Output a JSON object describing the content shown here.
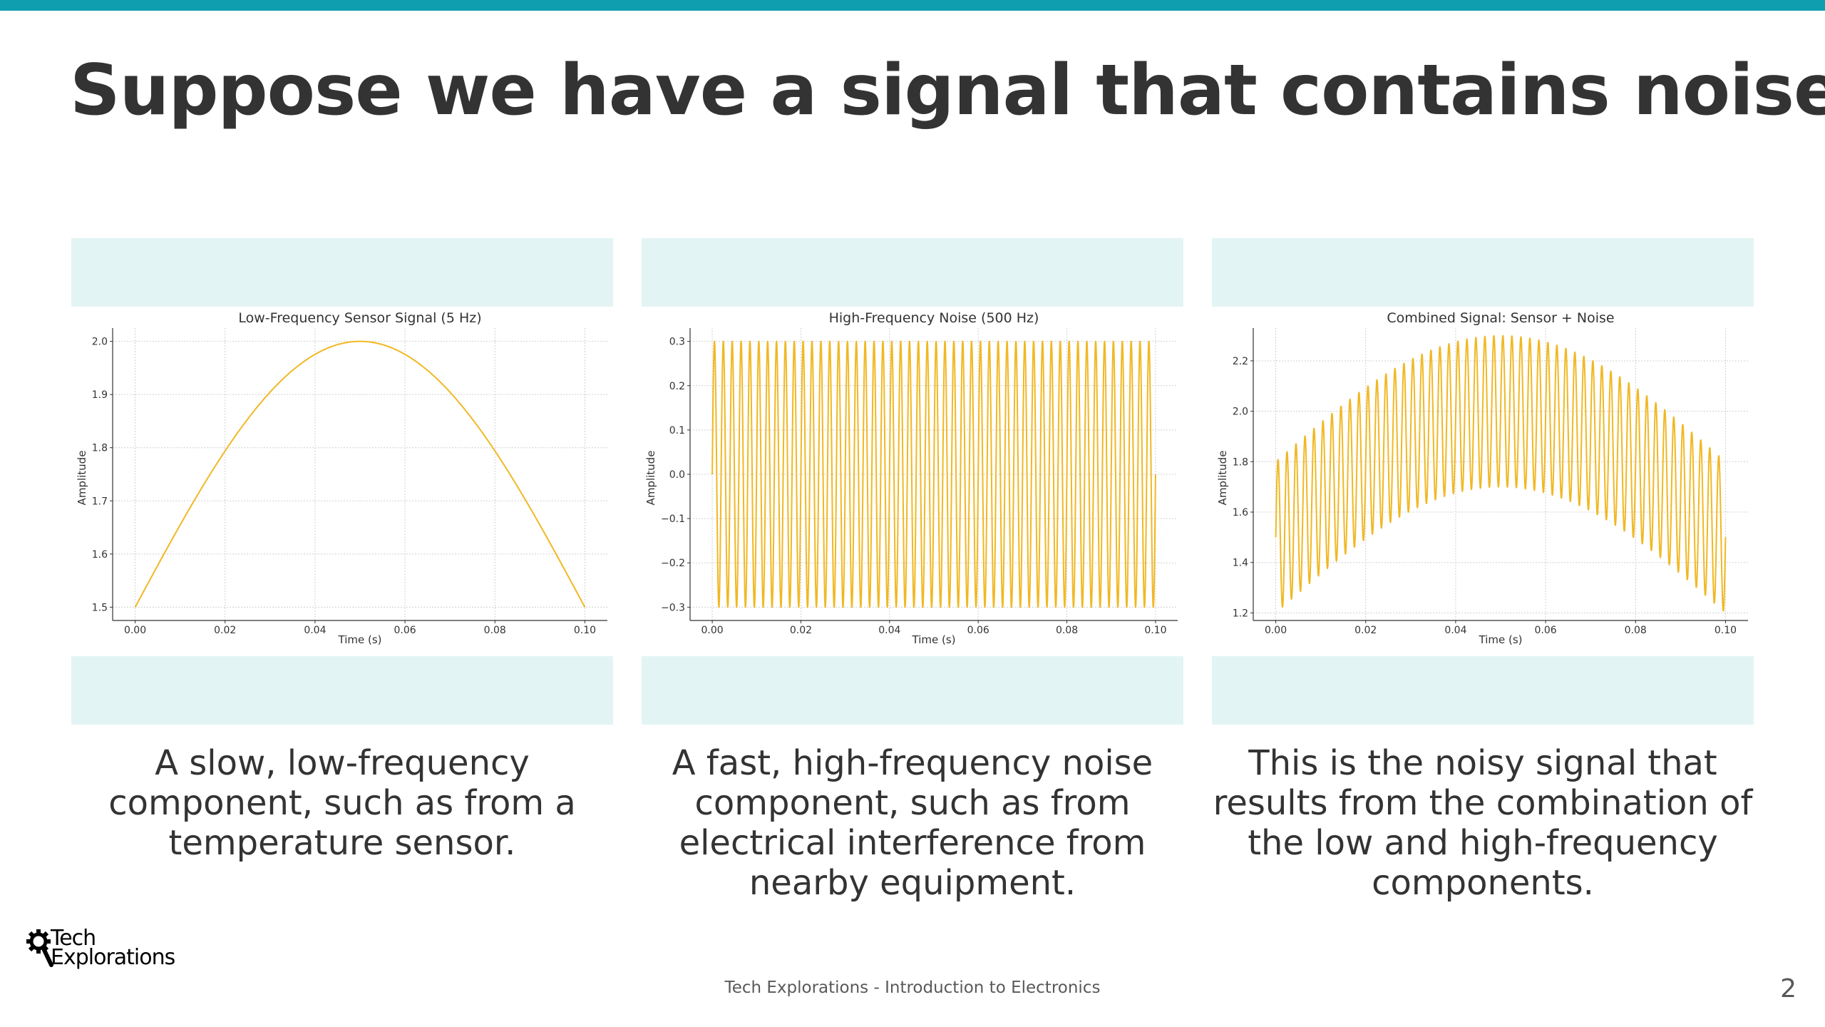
{
  "slide": {
    "title": "Suppose we have a signal that contains noise",
    "accent_color": "#0f9eb0",
    "panel_color": "#e3f4f4",
    "footer": "Tech Explorations - Introduction to Electronics",
    "page_number": "2",
    "logo": {
      "line1": "Tech",
      "line2": "Explorations",
      "icon": "gear-magnifier-icon"
    }
  },
  "captions": [
    "A slow, low-frequency component, such as from a temperature sensor.",
    "A fast, high-frequency noise component, such as from electrical interference from nearby equipment.",
    "This is the noisy signal that results from the combination of the low and high-frequency components."
  ],
  "chart_data": [
    {
      "type": "line",
      "title": "Low-Frequency Sensor Signal (5 Hz)",
      "xlabel": "Time (s)",
      "ylabel": "Amplitude",
      "xlim": [
        -0.005,
        0.105
      ],
      "ylim": [
        1.475,
        2.025
      ],
      "xticks": [
        0.0,
        0.02,
        0.04,
        0.06,
        0.08,
        0.1
      ],
      "xtick_labels": [
        "0.00",
        "0.02",
        "0.04",
        "0.06",
        "0.08",
        "0.10"
      ],
      "yticks": [
        1.5,
        1.6,
        1.7,
        1.8,
        1.9,
        2.0
      ],
      "ytick_labels": [
        "1.5",
        "1.6",
        "1.7",
        "1.8",
        "1.9",
        "2.0"
      ],
      "grid": true,
      "color": "#f0b823",
      "series": [
        {
          "formula": "1.5 + 0.5*sin(2*pi*5*t)",
          "x_start": 0.0,
          "x_end": 0.1
        }
      ]
    },
    {
      "type": "line",
      "title": "High-Frequency Noise (500 Hz)",
      "xlabel": "Time (s)",
      "ylabel": "Amplitude",
      "xlim": [
        -0.005,
        0.105
      ],
      "ylim": [
        -0.33,
        0.33
      ],
      "xticks": [
        0.0,
        0.02,
        0.04,
        0.06,
        0.08,
        0.1
      ],
      "xtick_labels": [
        "0.00",
        "0.02",
        "0.04",
        "0.06",
        "0.08",
        "0.10"
      ],
      "yticks": [
        -0.3,
        -0.2,
        -0.1,
        0.0,
        0.1,
        0.2,
        0.3
      ],
      "ytick_labels": [
        "−0.3",
        "−0.2",
        "−0.1",
        "0.0",
        "0.1",
        "0.2",
        "0.3"
      ],
      "grid": true,
      "color": "#f0b823",
      "series": [
        {
          "formula": "0.3*sin(2*pi*500*t)",
          "x_start": 0.0,
          "x_end": 0.1
        }
      ]
    },
    {
      "type": "line",
      "title": "Combined Signal: Sensor + Noise",
      "xlabel": "Time (s)",
      "ylabel": "Amplitude",
      "xlim": [
        -0.005,
        0.105
      ],
      "ylim": [
        1.17,
        2.33
      ],
      "xticks": [
        0.0,
        0.02,
        0.04,
        0.06,
        0.08,
        0.1
      ],
      "xtick_labels": [
        "0.00",
        "0.02",
        "0.04",
        "0.06",
        "0.08",
        "0.10"
      ],
      "yticks": [
        1.2,
        1.4,
        1.6,
        1.8,
        2.0,
        2.2
      ],
      "ytick_labels": [
        "1.2",
        "1.4",
        "1.6",
        "1.8",
        "2.0",
        "2.2"
      ],
      "grid": true,
      "color": "#f0b823",
      "series": [
        {
          "formula": "1.5 + 0.5*sin(2*pi*5*t) + 0.3*sin(2*pi*500*t)",
          "x_start": 0.0,
          "x_end": 0.1
        }
      ]
    }
  ]
}
